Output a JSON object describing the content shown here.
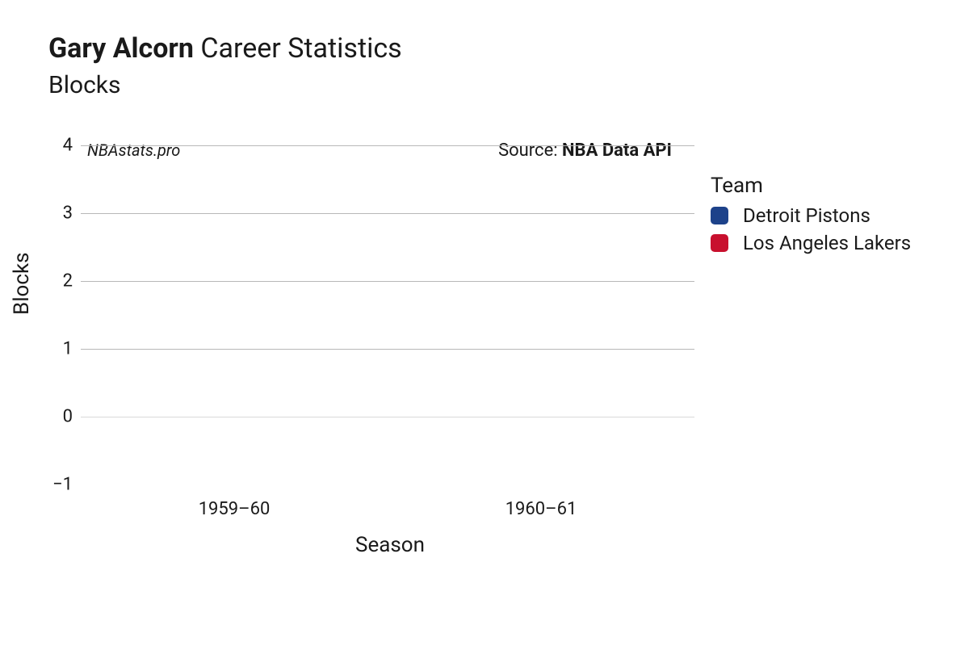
{
  "title": {
    "bold": "Gary Alcorn",
    "rest": " Career Statistics"
  },
  "subtitle": "Blocks",
  "watermark": "NBAstats.pro",
  "source_prefix": "Source: ",
  "source_name": "NBA Data API",
  "legend": {
    "title": "Team",
    "items": [
      {
        "label": "Detroit Pistons",
        "color": "#1d428a"
      },
      {
        "label": "Los Angeles Lakers",
        "color": "#c8102e"
      }
    ]
  },
  "chart": {
    "type": "bar",
    "xlabel": "Season",
    "ylabel": "Blocks",
    "ylim": [
      -1,
      4
    ],
    "yticks": [
      -1,
      0,
      1,
      2,
      3,
      4
    ],
    "xticks": [
      "1959–60",
      "1960–61"
    ],
    "grid_color": "#b8b8b8",
    "zero_line_color": "#d9d9d9",
    "background_color": "#ffffff",
    "title_fontsize": 34,
    "subtitle_fontsize": 30,
    "tick_fontsize": 22,
    "label_fontsize": 26,
    "legend_title_fontsize": 26,
    "legend_item_fontsize": 24,
    "series": []
  }
}
